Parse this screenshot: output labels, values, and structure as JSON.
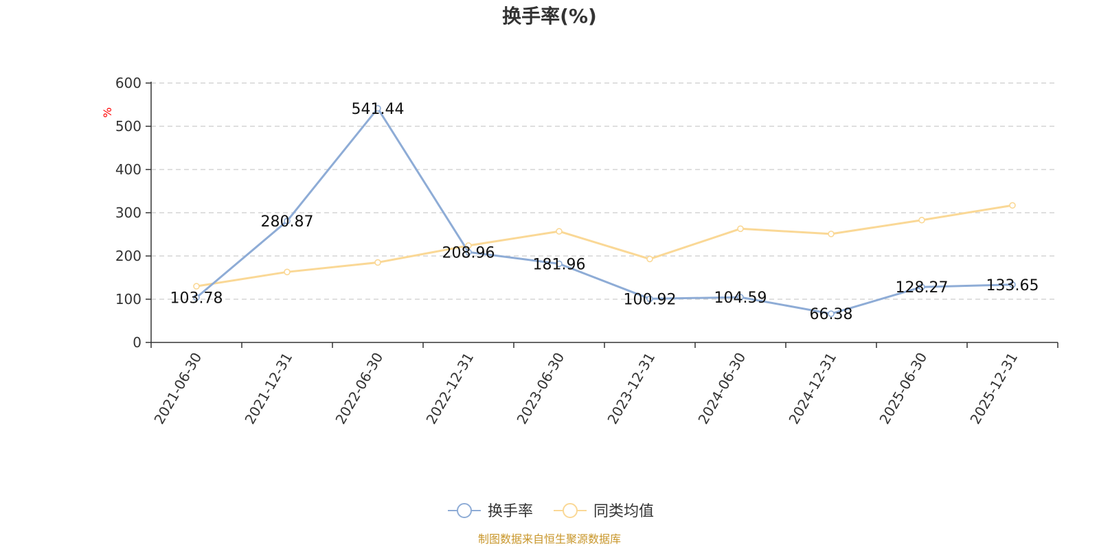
{
  "chart_data": {
    "type": "line",
    "title": "换手率(%)",
    "ylabel": "%",
    "xlabel": "",
    "ylim": [
      0,
      600
    ],
    "yticks": [
      0,
      100,
      200,
      300,
      400,
      500,
      600
    ],
    "categories": [
      "2021-06-30",
      "2021-12-31",
      "2022-06-30",
      "2022-12-31",
      "2023-06-30",
      "2023-12-31",
      "2024-06-30",
      "2024-12-31",
      "2025-06-30",
      "2025-12-31"
    ],
    "grid": true,
    "legend_position": "bottom",
    "series": [
      {
        "name": "换手率",
        "color": "#8eacd6",
        "values": [
          103.78,
          280.87,
          541.44,
          208.96,
          181.96,
          100.92,
          104.59,
          66.38,
          128.27,
          133.65
        ],
        "labels": [
          "103.78",
          "280.87",
          "541.44",
          "208.96",
          "181.96",
          "100.92",
          "104.59",
          "66.38",
          "128.27",
          "133.65"
        ]
      },
      {
        "name": "同类均值",
        "color": "#fad896",
        "values": [
          130,
          163,
          185,
          224,
          257,
          193,
          263,
          251,
          283,
          317
        ]
      }
    ]
  },
  "footer": {
    "source": "制图数据来自恒生聚源数据库"
  }
}
